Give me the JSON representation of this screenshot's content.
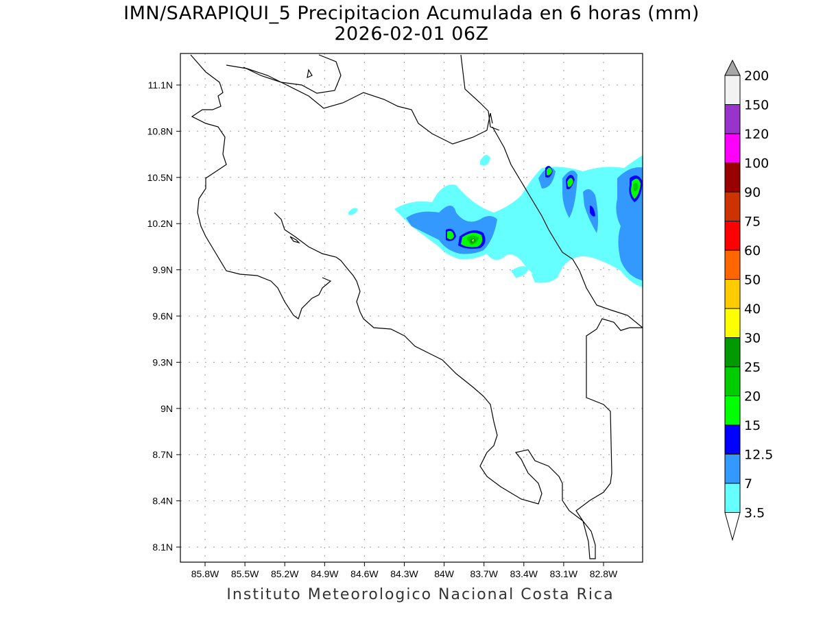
{
  "title": {
    "line1": "IMN/SARAPIQUI_5 Precipitacion Acumulada en 6 horas (mm)",
    "line2": "2026-02-01 06Z"
  },
  "footer": "Instituto Meteorologico Nacional Costa Rica",
  "axes": {
    "lon_ticks": [
      "85.8W",
      "85.5W",
      "85.2W",
      "84.9W",
      "84.6W",
      "84.3W",
      "84W",
      "83.7W",
      "83.4W",
      "83.1W",
      "82.8W"
    ],
    "lat_ticks": [
      "11.1N",
      "10.8N",
      "10.5N",
      "10.2N",
      "9.9N",
      "9.6N",
      "9.3N",
      "9N",
      "8.7N",
      "8.4N",
      "8.1N"
    ]
  },
  "colorbar": {
    "labels": [
      "3.5",
      "7",
      "12.5",
      "15",
      "20",
      "25",
      "30",
      "40",
      "50",
      "60",
      "75",
      "90",
      "100",
      "120",
      "150",
      "200"
    ],
    "colors": [
      "#66ffff",
      "#3399ff",
      "#0000ff",
      "#00ff00",
      "#00cc00",
      "#009900",
      "#ffff00",
      "#ffcc00",
      "#ff6600",
      "#ff0000",
      "#cc3300",
      "#990000",
      "#ff00ff",
      "#9933cc",
      "#f2f2f2"
    ],
    "over_color": "#a6a6a6",
    "under_color": "#ffffff"
  }
}
